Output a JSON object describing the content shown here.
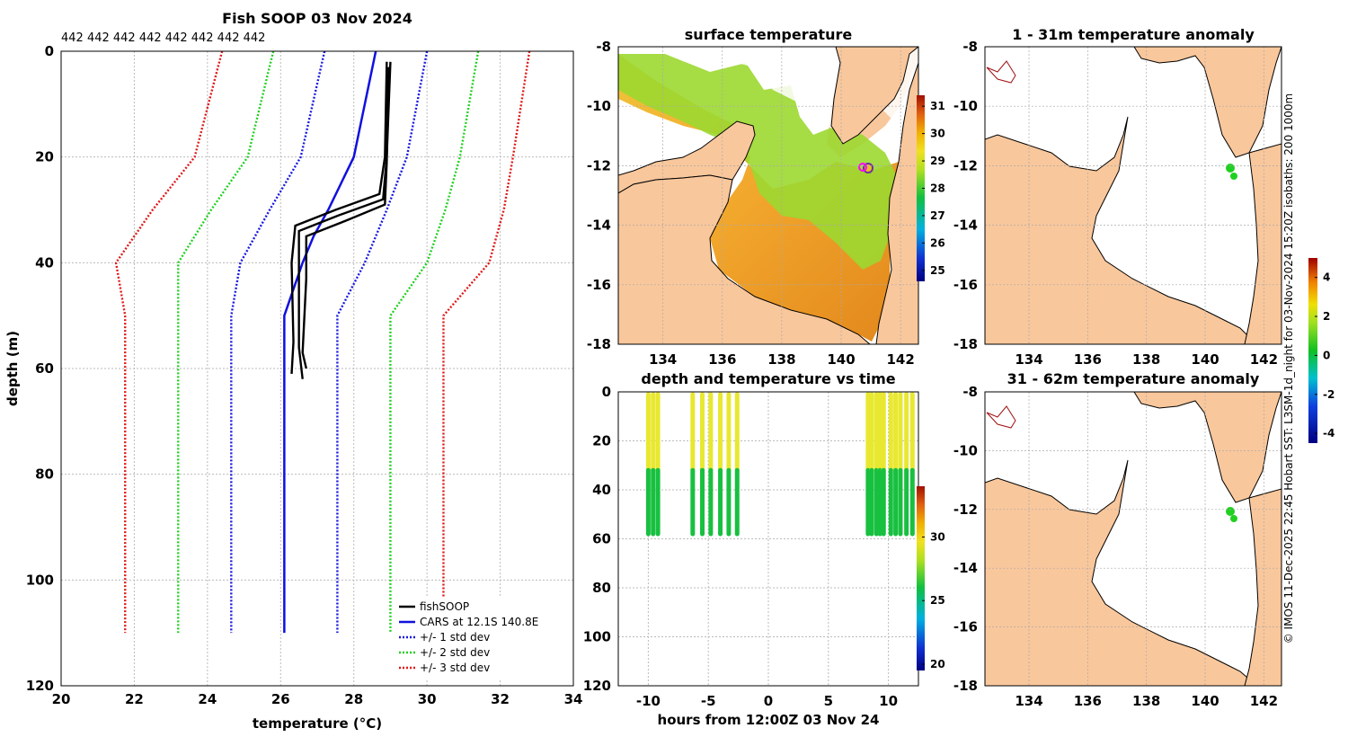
{
  "chart_data": [
    {
      "type": "line",
      "title": "Fish SOOP 03 Nov 2024",
      "xlabel": "temperature (°C)",
      "ylabel": "depth (m)",
      "xlim": [
        20,
        34
      ],
      "ylim": [
        120,
        0
      ],
      "xticks": [
        "20",
        "22",
        "24",
        "26",
        "28",
        "30",
        "32",
        "34"
      ],
      "yticks": [
        "0",
        "20",
        "40",
        "60",
        "80",
        "100",
        "120"
      ],
      "top_counts": "442 442 442 442 442 442 442 442",
      "legend": [
        "fishSOOP",
        "CARS at 12.1S 140.8E",
        "+/- 1 std dev",
        "+/- 2 std dev",
        "+/- 3 std dev"
      ],
      "cars": {
        "depth": [
          0,
          20,
          30,
          35,
          40,
          50,
          110
        ],
        "temp": [
          28.6,
          28.0,
          27.3,
          26.9,
          26.6,
          26.1,
          26.1
        ]
      },
      "std1": {
        "depth": [
          0,
          20,
          30,
          40,
          50,
          110
        ],
        "offset": [
          1.4,
          1.45,
          1.6,
          1.7,
          1.45,
          1.45
        ]
      },
      "fishsoop_profiles": [
        {
          "depth": [
            2,
            20,
            27,
            30,
            33,
            40,
            55,
            61
          ],
          "temp": [
            28.9,
            28.85,
            28.7,
            27.5,
            26.4,
            26.3,
            26.35,
            26.3
          ]
        },
        {
          "depth": [
            2,
            20,
            28,
            31,
            34,
            42,
            56,
            62
          ],
          "temp": [
            29.0,
            28.9,
            28.8,
            27.6,
            26.5,
            26.5,
            26.5,
            26.6
          ]
        },
        {
          "depth": [
            3,
            21,
            29,
            32,
            35,
            43,
            57,
            60
          ],
          "temp": [
            28.95,
            28.9,
            28.85,
            27.8,
            26.7,
            26.7,
            26.6,
            26.7
          ]
        }
      ]
    },
    {
      "type": "heatmap",
      "title": "surface temperature",
      "xticks": [
        "134",
        "136",
        "138",
        "140",
        "142"
      ],
      "yticks": [
        "-8",
        "-10",
        "-12",
        "-14",
        "-16",
        "-18"
      ],
      "colorbar": {
        "ticks": [
          "25",
          "26",
          "27",
          "28",
          "29",
          "30",
          "31"
        ],
        "range": [
          24.6,
          31.4
        ]
      }
    },
    {
      "type": "scatter",
      "title": "depth and temperature vs time",
      "xlabel": "hours from 12:00Z 03 Nov 24",
      "xlim": [
        -12.5,
        12.5
      ],
      "ylim": [
        120,
        0
      ],
      "xticks": [
        "-10",
        "-5",
        "0",
        "5",
        "10"
      ],
      "yticks": [
        "0",
        "20",
        "40",
        "60",
        "80",
        "100",
        "120"
      ],
      "colorbar": {
        "ticks": [
          "20",
          "25",
          "30"
        ],
        "range": [
          19.5,
          34.0
        ]
      },
      "casts": [
        -10.0,
        -9.6,
        -9.2,
        -6.3,
        -5.5,
        -4.8,
        -4.0,
        -3.3,
        -2.6,
        8.3,
        8.6,
        9.0,
        9.3,
        9.6,
        10.2,
        10.6,
        11.0,
        11.5,
        12.0
      ],
      "surface_temp": 29.1,
      "deep_temp": 26.3
    },
    {
      "type": "heatmap",
      "title": "1 - 31m temperature anomaly",
      "xticks": [
        "134",
        "136",
        "138",
        "140",
        "142"
      ],
      "yticks": [
        "-8",
        "-10",
        "-12",
        "-14",
        "-16",
        "-18"
      ]
    },
    {
      "type": "heatmap",
      "title": "31 - 62m temperature anomaly",
      "xticks": [
        "134",
        "136",
        "138",
        "140",
        "142"
      ],
      "yticks": [
        "-8",
        "-10",
        "-12",
        "-14",
        "-16",
        "-18"
      ]
    }
  ],
  "anomaly_colorbar": {
    "ticks": [
      "4",
      "2",
      "0",
      "-2",
      "-4"
    ],
    "range": [
      -4.5,
      5.0
    ]
  },
  "footer_vertical": "© IMOS 11-Dec-2025 22:45 Hobart SST: L3SM-1d_night for 03-Nov-2024 15:20Z isobaths: 200  1000m",
  "colors": {
    "land": "#f9c79c",
    "ocean": "#ffffff",
    "std1": "#1818e0",
    "std2": "#20d020",
    "std3": "#e01818",
    "cars": "#1010e0",
    "fish": "#000000"
  }
}
